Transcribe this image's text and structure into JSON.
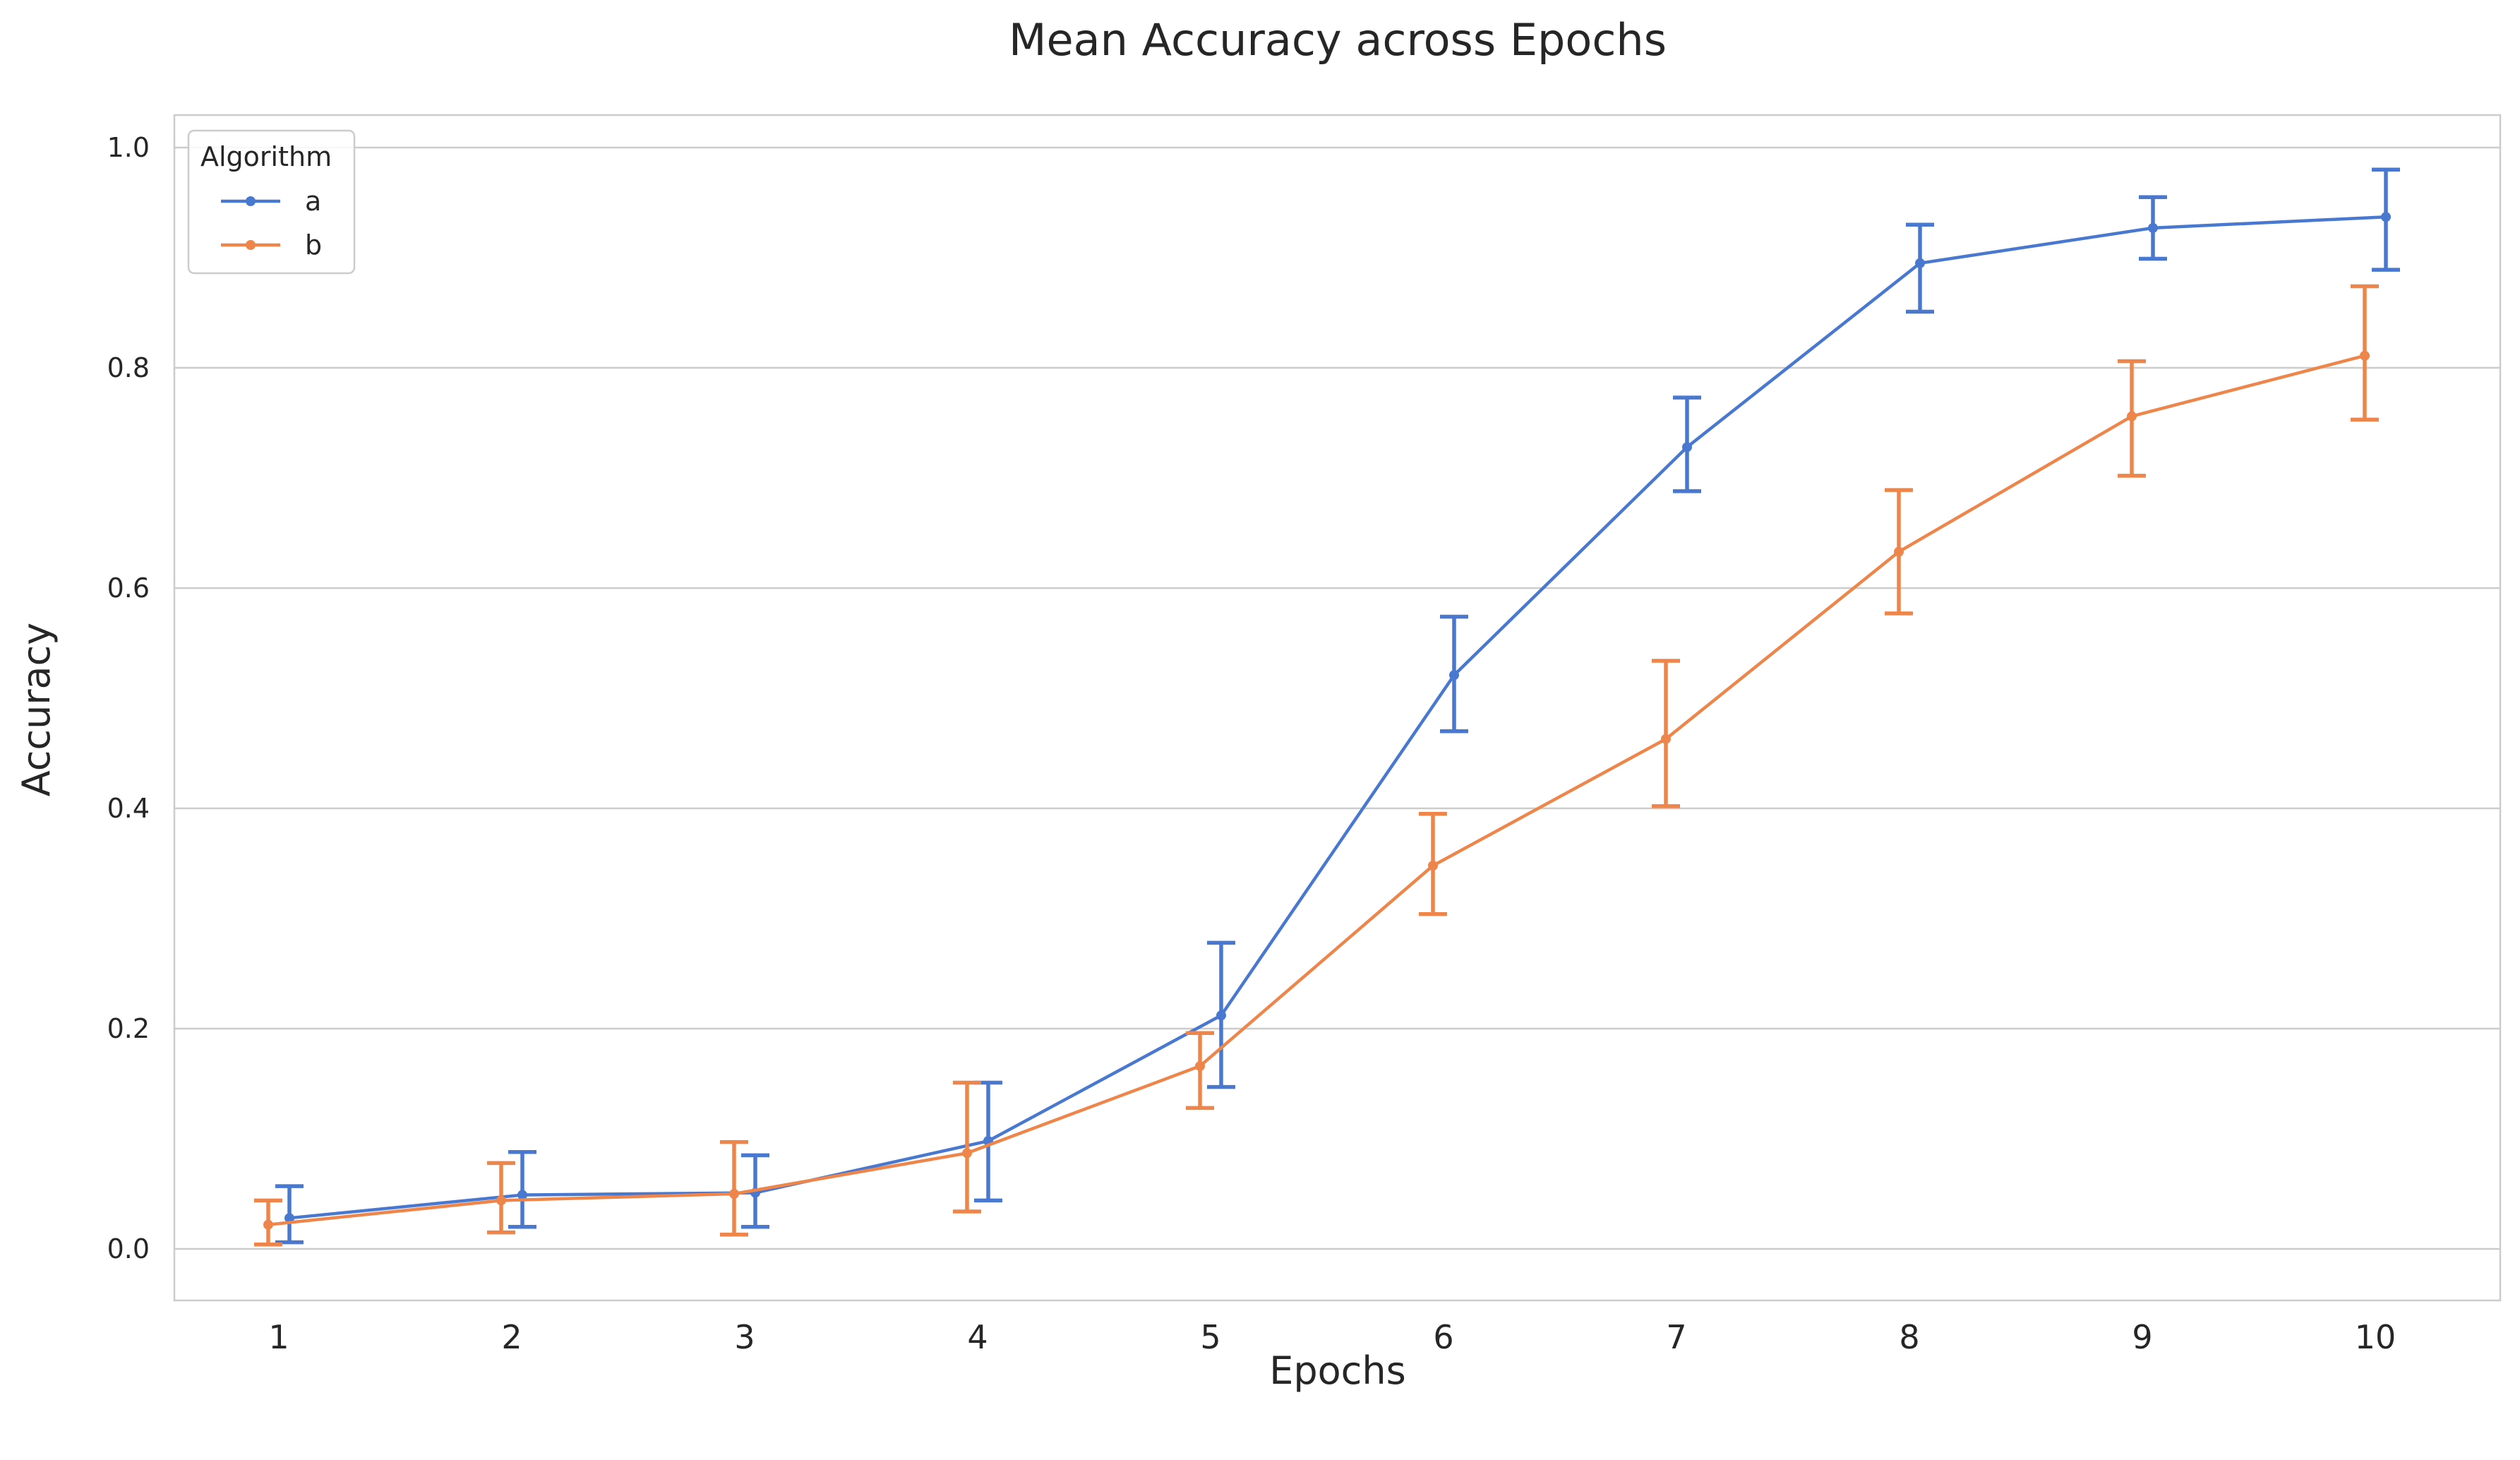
{
  "chart_data": {
    "type": "line",
    "title": "Mean Accuracy across Epochs",
    "xlabel": "Epochs",
    "ylabel": "Accuracy",
    "categories": [
      "1",
      "2",
      "3",
      "4",
      "5",
      "6",
      "7",
      "8",
      "9",
      "10"
    ],
    "ylim": [
      -0.045,
      1.03
    ],
    "yticks": [
      0.0,
      0.2,
      0.4,
      0.6,
      0.8,
      1.0
    ],
    "ytick_labels": [
      "0.0",
      "0.2",
      "0.4",
      "0.6",
      "0.8",
      "1.0"
    ],
    "grid": "horizontal",
    "error_bars": true,
    "legend": {
      "title": "Algorithm",
      "placement": "top-left"
    },
    "series": [
      {
        "name": "a",
        "color": "#4878d0",
        "values": [
          0.028,
          0.049,
          0.051,
          0.098,
          0.212,
          0.521,
          0.728,
          0.895,
          0.927,
          0.937
        ],
        "err_low": [
          0.006,
          0.02,
          0.02,
          0.044,
          0.147,
          0.47,
          0.688,
          0.851,
          0.899,
          0.889
        ],
        "err_high": [
          0.057,
          0.088,
          0.085,
          0.151,
          0.278,
          0.574,
          0.773,
          0.93,
          0.955,
          0.98
        ]
      },
      {
        "name": "b",
        "color": "#ee854a",
        "values": [
          0.022,
          0.044,
          0.05,
          0.087,
          0.166,
          0.348,
          0.463,
          0.633,
          0.756,
          0.811
        ],
        "err_low": [
          0.004,
          0.015,
          0.013,
          0.034,
          0.128,
          0.304,
          0.402,
          0.577,
          0.702,
          0.753
        ],
        "err_high": [
          0.044,
          0.078,
          0.097,
          0.151,
          0.196,
          0.395,
          0.534,
          0.689,
          0.806,
          0.874
        ]
      }
    ]
  }
}
